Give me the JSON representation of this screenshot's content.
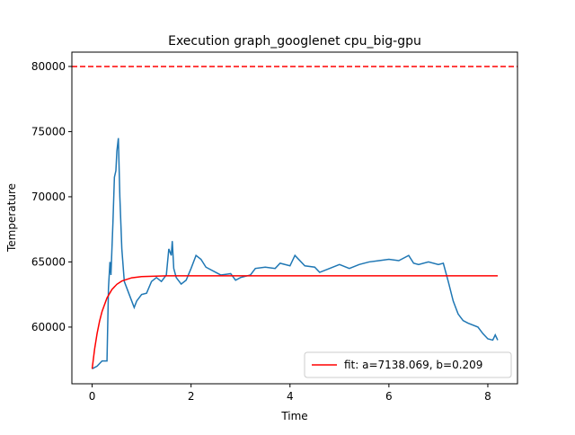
{
  "chart_data": {
    "type": "line",
    "title": "Execution graph_googlenet cpu_big-gpu",
    "xlabel": "Time",
    "ylabel": "Temperature",
    "xlim": [
      -0.41,
      8.6
    ],
    "ylim": [
      55650,
      81100
    ],
    "xticks": [
      0,
      2,
      4,
      6,
      8
    ],
    "yticks": [
      60000,
      65000,
      70000,
      75000,
      80000
    ],
    "legend": "lower right",
    "hline": {
      "value": 80000,
      "color": "#ff0000",
      "style": "dashed"
    },
    "series": [
      {
        "color": "#1f77b4",
        "x": [
          0,
          0.1,
          0.2,
          0.3,
          0.33,
          0.36,
          0.38,
          0.42,
          0.45,
          0.48,
          0.5,
          0.53,
          0.56,
          0.6,
          0.65,
          0.7,
          0.8,
          0.85,
          0.9,
          1.0,
          1.1,
          1.2,
          1.3,
          1.4,
          1.5,
          1.55,
          1.6,
          1.62,
          1.65,
          1.7,
          1.8,
          1.9,
          2.0,
          2.1,
          2.2,
          2.3,
          2.5,
          2.6,
          2.8,
          2.9,
          3.0,
          3.2,
          3.3,
          3.5,
          3.7,
          3.8,
          4.0,
          4.1,
          4.3,
          4.5,
          4.6,
          4.8,
          5.0,
          5.2,
          5.4,
          5.6,
          5.8,
          6.0,
          6.2,
          6.4,
          6.5,
          6.6,
          6.8,
          7.0,
          7.1,
          7.2,
          7.3,
          7.4,
          7.5,
          7.6,
          7.8,
          7.9,
          8.0,
          8.1,
          8.15,
          8.2
        ],
        "values": [
          56800,
          57000,
          57400,
          57400,
          63000,
          65000,
          64000,
          68000,
          71500,
          72000,
          73500,
          74500,
          70000,
          66000,
          63500,
          63000,
          62000,
          61500,
          62000,
          62500,
          62600,
          63500,
          63800,
          63500,
          64000,
          66000,
          65500,
          66600,
          64500,
          63800,
          63300,
          63600,
          64500,
          65500,
          65200,
          64600,
          64200,
          64000,
          64100,
          63600,
          63800,
          64000,
          64500,
          64600,
          64500,
          64900,
          64700,
          65500,
          64700,
          64600,
          64200,
          64500,
          64800,
          64500,
          64800,
          65000,
          65100,
          65200,
          65100,
          65500,
          64900,
          64800,
          65000,
          64800,
          64900,
          63500,
          62000,
          61000,
          60500,
          60300,
          60000,
          59500,
          59100,
          59000,
          59400,
          59000
        ]
      },
      {
        "name": "fit: a=7138.069, b=0.209",
        "color": "#ff0000",
        "x": [
          0,
          0.05,
          0.1,
          0.15,
          0.2,
          0.3,
          0.4,
          0.5,
          0.6,
          0.8,
          1.0,
          1.5,
          2,
          4,
          6,
          8.2
        ],
        "values": [
          56800,
          58320,
          59513,
          60455,
          61197,
          62239,
          62885,
          63286,
          63534,
          63782,
          63878,
          63933,
          63938,
          63938,
          63938,
          63938
        ]
      }
    ]
  }
}
